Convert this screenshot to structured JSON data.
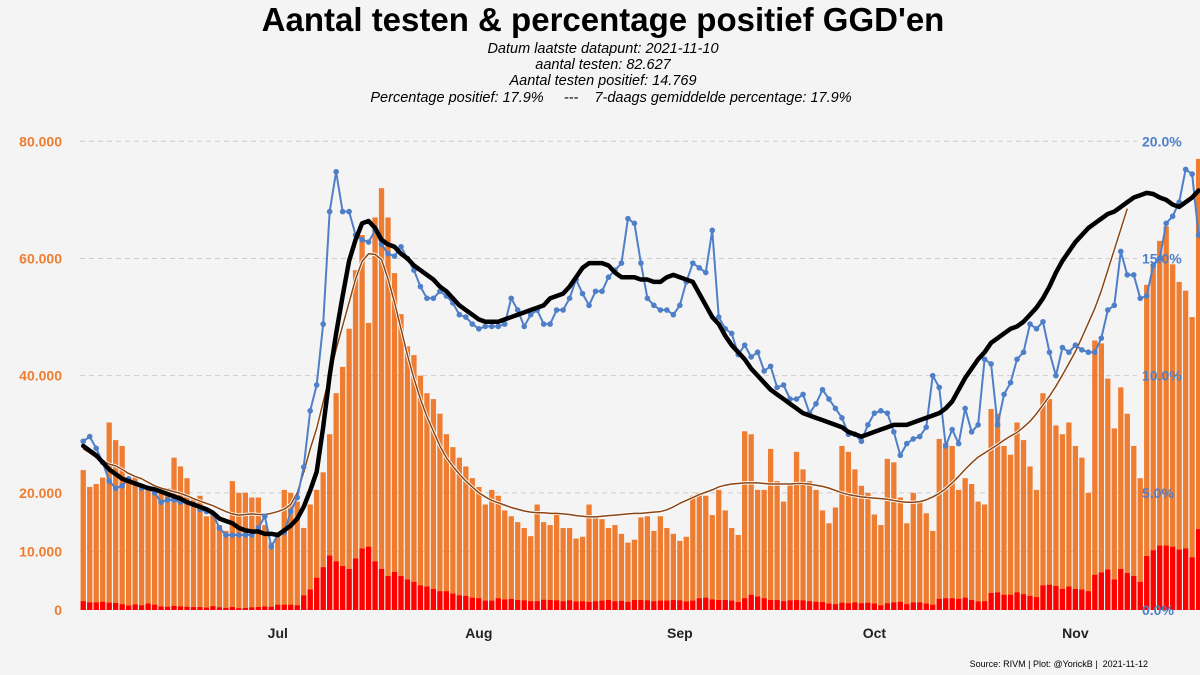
{
  "colors": {
    "background": "#f4f4f4",
    "tests_bar": "#ee7d31",
    "positive_bar": "#ff0000",
    "pct_daily_line": "#4f7fc8",
    "pct_7day_line": "#000000",
    "tests_7day_line": "#8b4513",
    "left_axis_text": "#ee7d31",
    "right_axis_text": "#4f7fc8",
    "grid": "#cccccc"
  },
  "chart_data": {
    "type": "bar",
    "title": "Aantal testen & percentage positief GGD'en",
    "subtitle_lines": [
      "Datum laatste datapunt: 2021-11-10",
      "aantal testen: 82.627",
      "Aantal testen positief: 14.769",
      "Percentage positief: 17.9%     ---    7-daags gemiddelde percentage: 17.9%"
    ],
    "source": "Source: RIVM | Plot: @YorickB |  2021-11-12",
    "x_start": "2021-06-01",
    "x_end": "2021-11-10",
    "x_ticks": [
      {
        "label": "Jul",
        "date": "2021-07-01"
      },
      {
        "label": "Aug",
        "date": "2021-08-01"
      },
      {
        "label": "Sep",
        "date": "2021-09-01"
      },
      {
        "label": "Oct",
        "date": "2021-10-01"
      },
      {
        "label": "Nov",
        "date": "2021-11-01"
      }
    ],
    "y_left": {
      "range": [
        0,
        85000
      ],
      "ticks": [
        0,
        10000,
        20000,
        40000,
        60000,
        80000
      ],
      "tick_labels": [
        "0",
        "10.000",
        "20.000",
        "40.000",
        "60.000",
        "80.000"
      ]
    },
    "y_right": {
      "range": [
        0,
        21.25
      ],
      "ticks": [
        0,
        5,
        10,
        15,
        20
      ],
      "tick_labels": [
        "0.0%",
        "5.0%",
        "10.0%",
        "15.0%",
        "20.0%"
      ]
    },
    "grid": "horizontal dashed",
    "series": [
      {
        "kind": "bar",
        "values": [
          23877,
          21000,
          21500,
          22600,
          32000,
          29000,
          28000,
          22000,
          22600,
          21500,
          21000,
          20000,
          20500,
          20800,
          26000,
          24500,
          22500,
          19000,
          19500,
          16000,
          16200,
          14500,
          13500,
          22000,
          20000,
          20000,
          19200,
          19200,
          14500,
          11500,
          12500,
          20500,
          20000,
          18500,
          14000,
          18000,
          20500,
          23500,
          30000,
          37000,
          41500,
          48000,
          58000,
          64000,
          49000,
          67000,
          72000,
          67000,
          57500,
          50500,
          45000,
          43500,
          40000,
          37000,
          36000,
          33500,
          30000,
          27800,
          26000,
          24500,
          22500,
          21000,
          18000,
          20500,
          19500,
          17000,
          16000,
          15000,
          14000,
          12600,
          18000,
          15000,
          14500,
          16500,
          14000,
          14000,
          12200,
          12500,
          18000,
          16000,
          15500,
          14000,
          14500,
          13000,
          11500,
          12000,
          15800,
          16000,
          13500,
          16000,
          14000,
          13000,
          11800,
          12500,
          19500,
          20000,
          19500,
          16200,
          20500,
          17000,
          14000,
          12800,
          30500,
          30000,
          20500,
          20500,
          27500,
          22000,
          18500,
          21300,
          27000,
          24000,
          22000,
          20500,
          17000,
          14800,
          17500,
          28000,
          27000,
          24000,
          21200,
          20000,
          16300,
          14500,
          25800,
          25200,
          19200,
          14800,
          20000,
          18500,
          16500,
          13500,
          29200,
          28500,
          28000,
          20500,
          22500,
          21500,
          18500,
          18000,
          34300,
          33500,
          28000,
          26500,
          32000,
          29000,
          24500,
          20500,
          37000,
          36000,
          31500,
          30000,
          32000,
          28000,
          26000,
          20000,
          46000,
          45500,
          39500,
          31000,
          38000,
          33500,
          28000,
          22500,
          55500,
          59000,
          63000,
          65500,
          59000,
          56000,
          54500,
          50000,
          77000,
          82627
        ],
        "name": "tests"
      },
      {
        "kind": "bar",
        "values": [
          1500,
          1300,
          1300,
          1400,
          1250,
          1200,
          1000,
          750,
          950,
          800,
          1100,
          900,
          600,
          550,
          700,
          600,
          550,
          500,
          500,
          400,
          650,
          450,
          350,
          500,
          300,
          350,
          450,
          500,
          600,
          550,
          900,
          900,
          900,
          800,
          2500,
          3500,
          5500,
          7300,
          9300,
          8300,
          7500,
          7000,
          8800,
          10500,
          10800,
          8300,
          7000,
          5800,
          6500,
          5800,
          5200,
          4800,
          4200,
          4000,
          3600,
          3200,
          3200,
          2800,
          2500,
          2400,
          2100,
          2000,
          1600,
          1600,
          2000,
          1800,
          1900,
          1700,
          1650,
          1500,
          1500,
          1750,
          1700,
          1650,
          1500,
          1650,
          1450,
          1500,
          1400,
          1500,
          1600,
          1700,
          1500,
          1550,
          1400,
          1700,
          1700,
          1650,
          1500,
          1600,
          1600,
          1700,
          1650,
          1450,
          1600,
          2000,
          2100,
          1800,
          1700,
          1700,
          1600,
          1350,
          2000,
          2600,
          2300,
          2000,
          1700,
          1700,
          1500,
          1650,
          1700,
          1650,
          1500,
          1400,
          1350,
          1100,
          1000,
          1250,
          1150,
          1300,
          1150,
          1250,
          1100,
          800,
          1150,
          1300,
          1400,
          1000,
          1300,
          1300,
          1100,
          900,
          1900,
          2000,
          2000,
          1900,
          2100,
          1700,
          1450,
          1500,
          2900,
          3000,
          2600,
          2600,
          3000,
          2700,
          2400,
          2200,
          4200,
          4300,
          4100,
          3600,
          4000,
          3600,
          3500,
          3200,
          6000,
          6400,
          6900,
          5200,
          7000,
          6300,
          5800,
          4800,
          9200,
          10200,
          11000,
          11000,
          10800,
          10300,
          10500,
          9000,
          13800,
          14769
        ],
        "name": "positive"
      },
      {
        "kind": "line",
        "name": "pct_daily",
        "values": [
          7.2,
          7.4,
          6.9,
          6.3,
          5.5,
          5.2,
          5.3,
          5.6,
          5.4,
          5.2,
          5.2,
          5.0,
          4.6,
          4.7,
          4.7,
          4.6,
          4.6,
          4.5,
          4.3,
          4.2,
          4.1,
          3.5,
          3.2,
          3.2,
          3.2,
          3.2,
          3.2,
          3.5,
          4.0,
          2.7,
          3.2,
          3.3,
          4.2,
          4.8,
          6.1,
          8.5,
          9.6,
          12.2,
          17.0,
          18.7,
          17.0,
          17.0,
          16.0,
          15.8,
          15.7,
          16.2,
          15.6,
          15.2,
          15.1,
          15.5,
          15.0,
          14.5,
          13.8,
          13.3,
          13.3,
          13.6,
          13.4,
          13.1,
          12.6,
          12.5,
          12.2,
          12.0,
          12.1,
          12.1,
          12.1,
          12.2,
          13.3,
          12.8,
          12.1,
          12.6,
          12.8,
          12.2,
          12.2,
          12.8,
          12.8,
          13.3,
          14.1,
          13.5,
          13.0,
          13.6,
          13.6,
          14.2,
          14.5,
          14.8,
          16.7,
          16.5,
          14.8,
          13.3,
          13.0,
          12.8,
          12.8,
          12.6,
          13.0,
          14.0,
          14.8,
          14.6,
          14.4,
          16.2,
          12.5,
          12.0,
          11.8,
          10.9,
          11.3,
          10.8,
          11.0,
          10.2,
          10.4,
          9.5,
          9.6,
          9.0,
          9.0,
          9.2,
          8.4,
          8.8,
          9.4,
          9.0,
          8.6,
          8.2,
          7.5,
          7.5,
          7.2,
          7.9,
          8.4,
          8.5,
          8.4,
          7.6,
          6.6,
          7.1,
          7.3,
          7.4,
          7.8,
          10.0,
          9.5,
          7.0,
          7.7,
          7.1,
          8.6,
          7.6,
          7.9,
          10.7,
          10.5,
          7.9,
          9.2,
          9.7,
          10.7,
          11.0,
          12.2,
          12.0,
          12.3,
          11.0,
          10.0,
          11.2,
          11.0,
          11.3,
          11.1,
          11.0,
          11.0,
          11.6,
          12.8,
          13.0,
          15.3,
          14.3,
          14.3,
          13.3,
          13.4,
          14.7,
          15.0,
          16.5,
          16.8,
          17.4,
          18.8,
          18.6,
          16.0,
          15.5,
          15.2,
          16.6,
          17.0,
          18.6,
          18.8,
          16.6,
          16.0,
          15.8,
          15.9,
          19.0,
          18.5,
          16.4,
          17.6,
          17.9
        ]
      },
      {
        "kind": "line",
        "name": "pct_7day",
        "values": [
          7.0,
          6.8,
          6.6,
          6.3,
          6.0,
          5.8,
          5.6,
          5.5,
          5.4,
          5.3,
          5.2,
          5.15,
          5.05,
          4.95,
          4.85,
          4.75,
          4.6,
          4.5,
          4.4,
          4.3,
          4.15,
          3.9,
          3.8,
          3.7,
          3.5,
          3.4,
          3.35,
          3.35,
          3.25,
          3.25,
          3.2,
          3.4,
          3.6,
          3.9,
          4.4,
          5.1,
          5.9,
          7.8,
          10.0,
          11.8,
          13.4,
          14.9,
          15.8,
          16.5,
          16.6,
          16.3,
          15.8,
          15.6,
          15.5,
          15.2,
          15.0,
          14.7,
          14.5,
          14.3,
          14.1,
          13.8,
          13.6,
          13.3,
          13.0,
          12.8,
          12.6,
          12.4,
          12.3,
          12.3,
          12.3,
          12.4,
          12.5,
          12.6,
          12.7,
          12.8,
          12.9,
          13.0,
          13.3,
          13.4,
          13.5,
          13.8,
          14.2,
          14.6,
          14.8,
          14.8,
          14.8,
          14.7,
          14.4,
          14.2,
          14.2,
          14.2,
          14.1,
          14.1,
          14.0,
          14.0,
          14.2,
          14.3,
          14.2,
          14.1,
          14.0,
          13.5,
          13.0,
          12.5,
          12.2,
          11.7,
          11.3,
          11.0,
          10.7,
          10.3,
          10.0,
          9.7,
          9.4,
          9.2,
          9.0,
          8.8,
          8.6,
          8.4,
          8.3,
          8.2,
          8.1,
          8.0,
          7.9,
          7.8,
          7.6,
          7.5,
          7.4,
          7.5,
          7.6,
          7.7,
          7.8,
          7.9,
          7.9,
          7.9,
          8.0,
          8.1,
          8.2,
          8.3,
          8.4,
          8.6,
          8.9,
          9.4,
          9.9,
          10.3,
          10.7,
          11.0,
          11.4,
          11.6,
          11.8,
          12.0,
          12.1,
          12.3,
          12.6,
          12.9,
          13.3,
          13.8,
          14.4,
          14.9,
          15.3,
          15.7,
          16.0,
          16.3,
          16.5,
          16.7,
          16.9,
          17.0,
          17.2,
          17.4,
          17.6,
          17.7,
          17.8,
          17.75,
          17.6,
          17.5,
          17.3,
          17.2,
          17.4,
          17.6,
          17.9
        ]
      },
      {
        "kind": "line",
        "name": "tests_7day",
        "values": [
          27500,
          26800,
          26000,
          25500,
          24900,
          24600,
          24000,
          23300,
          22800,
          22400,
          21800,
          21200,
          20800,
          20500,
          20200,
          19900,
          19500,
          19000,
          18600,
          18200,
          17800,
          17300,
          16800,
          16400,
          16200,
          16300,
          16400,
          16300,
          16300,
          16500,
          16800,
          17200,
          18000,
          20000,
          23500,
          27500,
          31000,
          35500,
          40000,
          44500,
          48500,
          52500,
          56500,
          59500,
          60800,
          60700,
          59800,
          56500,
          52500,
          48000,
          43500,
          39500,
          36000,
          33000,
          30500,
          28000,
          26000,
          24500,
          23200,
          22000,
          21000,
          20000,
          19300,
          18700,
          18300,
          17900,
          17500,
          17200,
          16900,
          16700,
          16600,
          16600,
          16500,
          16500,
          16400,
          16300,
          16100,
          16000,
          15900,
          15900,
          16000,
          16100,
          16200,
          16300,
          16400,
          16500,
          16500,
          16600,
          16700,
          16800,
          17100,
          17600,
          18200,
          18700,
          19200,
          19700,
          20100,
          20500,
          21000,
          21300,
          21500,
          21600,
          21700,
          21700,
          21700,
          21600,
          21500,
          21500,
          21500,
          21500,
          21600,
          21600,
          21500,
          21300,
          21100,
          20800,
          20400,
          20000,
          19700,
          19500,
          19300,
          19200,
          19100,
          19000,
          18900,
          18700,
          18500,
          18400,
          18400,
          18500,
          18800,
          19300,
          19900,
          20700,
          21700,
          22800,
          24000,
          25100,
          26100,
          26800,
          27500,
          28200,
          29000,
          29700,
          30300,
          31200,
          32200,
          33500,
          35000,
          36500,
          38200,
          40100,
          42100,
          44100,
          46500,
          49000,
          51500,
          54500,
          58000,
          61500,
          65000,
          68500
        ]
      }
    ]
  }
}
